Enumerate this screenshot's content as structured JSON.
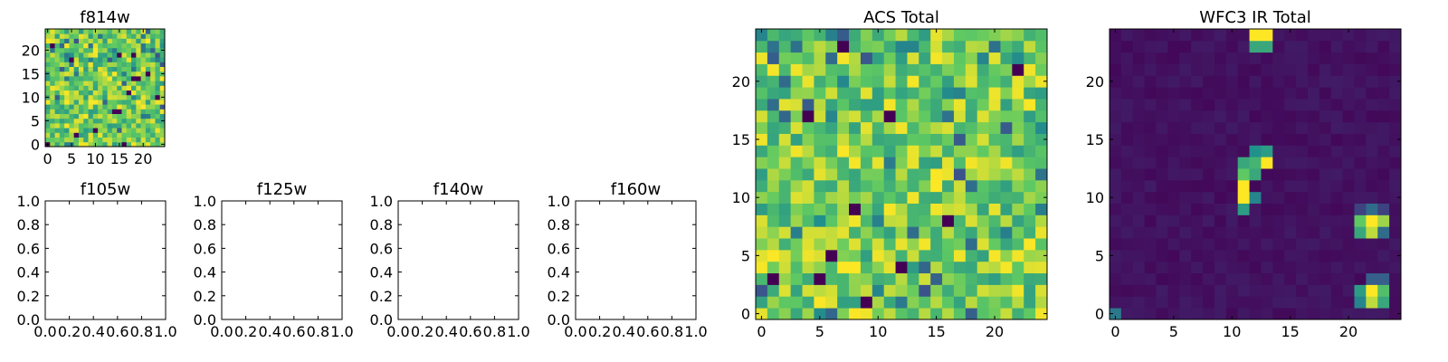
{
  "figure": {
    "background": "#ffffff",
    "colormap": "viridis",
    "colormap_stops": [
      "#440154",
      "#3b528b",
      "#21918c",
      "#5ec962",
      "#fde725"
    ]
  },
  "chart_data": [
    {
      "type": "heatmap",
      "title": "f814w",
      "xticks": [
        "0",
        "5",
        "10",
        "15",
        "20"
      ],
      "yticks": [
        "0",
        "5",
        "10",
        "15",
        "20"
      ],
      "xlim": [
        -0.5,
        24.5
      ],
      "ylim": [
        -0.5,
        24.5
      ],
      "shape": [
        25,
        25
      ],
      "pattern": "noise",
      "value_range": [
        0.0,
        1.0
      ],
      "grid": false
    },
    {
      "type": "empty",
      "title": "f105w",
      "xticks": [
        "0.0",
        "0.2",
        "0.4",
        "0.6",
        "0.8",
        "1.0"
      ],
      "yticks": [
        "0.0",
        "0.2",
        "0.4",
        "0.6",
        "0.8",
        "1.0"
      ],
      "xlim": [
        0,
        1
      ],
      "ylim": [
        0,
        1
      ],
      "grid": false
    },
    {
      "type": "empty",
      "title": "f125w",
      "xticks": [
        "0.0",
        "0.2",
        "0.4",
        "0.6",
        "0.8",
        "1.0"
      ],
      "yticks": [
        "0.0",
        "0.2",
        "0.4",
        "0.6",
        "0.8",
        "1.0"
      ],
      "xlim": [
        0,
        1
      ],
      "ylim": [
        0,
        1
      ],
      "grid": false
    },
    {
      "type": "empty",
      "title": "f140w",
      "xticks": [
        "0.0",
        "0.2",
        "0.4",
        "0.6",
        "0.8",
        "1.0"
      ],
      "yticks": [
        "0.0",
        "0.2",
        "0.4",
        "0.6",
        "0.8",
        "1.0"
      ],
      "xlim": [
        0,
        1
      ],
      "ylim": [
        0,
        1
      ],
      "grid": false
    },
    {
      "type": "empty",
      "title": "f160w",
      "xticks": [
        "0.0",
        "0.2",
        "0.4",
        "0.6",
        "0.8",
        "1.0"
      ],
      "yticks": [
        "0.0",
        "0.2",
        "0.4",
        "0.6",
        "0.8",
        "1.0"
      ],
      "xlim": [
        0,
        1
      ],
      "ylim": [
        0,
        1
      ],
      "grid": false
    },
    {
      "type": "heatmap",
      "title": "ACS Total",
      "xticks": [
        "0",
        "5",
        "10",
        "15",
        "20"
      ],
      "yticks": [
        "0",
        "5",
        "10",
        "15",
        "20"
      ],
      "xlim": [
        -0.5,
        24.5
      ],
      "ylim": [
        -0.5,
        24.5
      ],
      "shape": [
        25,
        25
      ],
      "pattern": "noise",
      "value_range": [
        0.0,
        1.0
      ],
      "grid": false
    },
    {
      "type": "heatmap",
      "title": "WFC3 IR Total",
      "xticks": [
        "0",
        "5",
        "10",
        "15",
        "20"
      ],
      "yticks": [
        "0",
        "5",
        "10",
        "15",
        "20"
      ],
      "xlim": [
        -0.5,
        24.5
      ],
      "ylim": [
        -0.5,
        24.5
      ],
      "shape": [
        25,
        25
      ],
      "pattern": "sparse_sources",
      "background_value": 0.05,
      "sources": [
        {
          "x": 12,
          "y": 24,
          "value": 1.0
        },
        {
          "x": 13,
          "y": 24,
          "value": 1.0
        },
        {
          "x": 12,
          "y": 23,
          "value": 0.6
        },
        {
          "x": 13,
          "y": 23,
          "value": 0.6
        },
        {
          "x": 12,
          "y": 14,
          "value": 0.5
        },
        {
          "x": 13,
          "y": 14,
          "value": 0.55
        },
        {
          "x": 11,
          "y": 13,
          "value": 0.6
        },
        {
          "x": 12,
          "y": 13,
          "value": 0.65
        },
        {
          "x": 13,
          "y": 13,
          "value": 1.0
        },
        {
          "x": 11,
          "y": 12,
          "value": 0.75
        },
        {
          "x": 12,
          "y": 12,
          "value": 0.6
        },
        {
          "x": 11,
          "y": 11,
          "value": 1.0
        },
        {
          "x": 11,
          "y": 10,
          "value": 1.0
        },
        {
          "x": 12,
          "y": 10,
          "value": 0.45
        },
        {
          "x": 11,
          "y": 9,
          "value": 0.55
        },
        {
          "x": 21,
          "y": 9,
          "value": 0.2
        },
        {
          "x": 22,
          "y": 9,
          "value": 0.35
        },
        {
          "x": 23,
          "y": 9,
          "value": 0.2
        },
        {
          "x": 21,
          "y": 8,
          "value": 0.75
        },
        {
          "x": 22,
          "y": 8,
          "value": 1.0
        },
        {
          "x": 23,
          "y": 8,
          "value": 0.85
        },
        {
          "x": 21,
          "y": 7,
          "value": 0.6
        },
        {
          "x": 22,
          "y": 7,
          "value": 0.9
        },
        {
          "x": 23,
          "y": 7,
          "value": 0.35
        },
        {
          "x": 22,
          "y": 3,
          "value": 0.3
        },
        {
          "x": 23,
          "y": 3,
          "value": 0.3
        },
        {
          "x": 21,
          "y": 2,
          "value": 0.55
        },
        {
          "x": 22,
          "y": 2,
          "value": 1.0
        },
        {
          "x": 23,
          "y": 2,
          "value": 0.7
        },
        {
          "x": 21,
          "y": 1,
          "value": 0.45
        },
        {
          "x": 22,
          "y": 1,
          "value": 0.9
        },
        {
          "x": 23,
          "y": 1,
          "value": 0.6
        },
        {
          "x": 0,
          "y": 0,
          "value": 0.4
        }
      ],
      "grid": false
    }
  ]
}
